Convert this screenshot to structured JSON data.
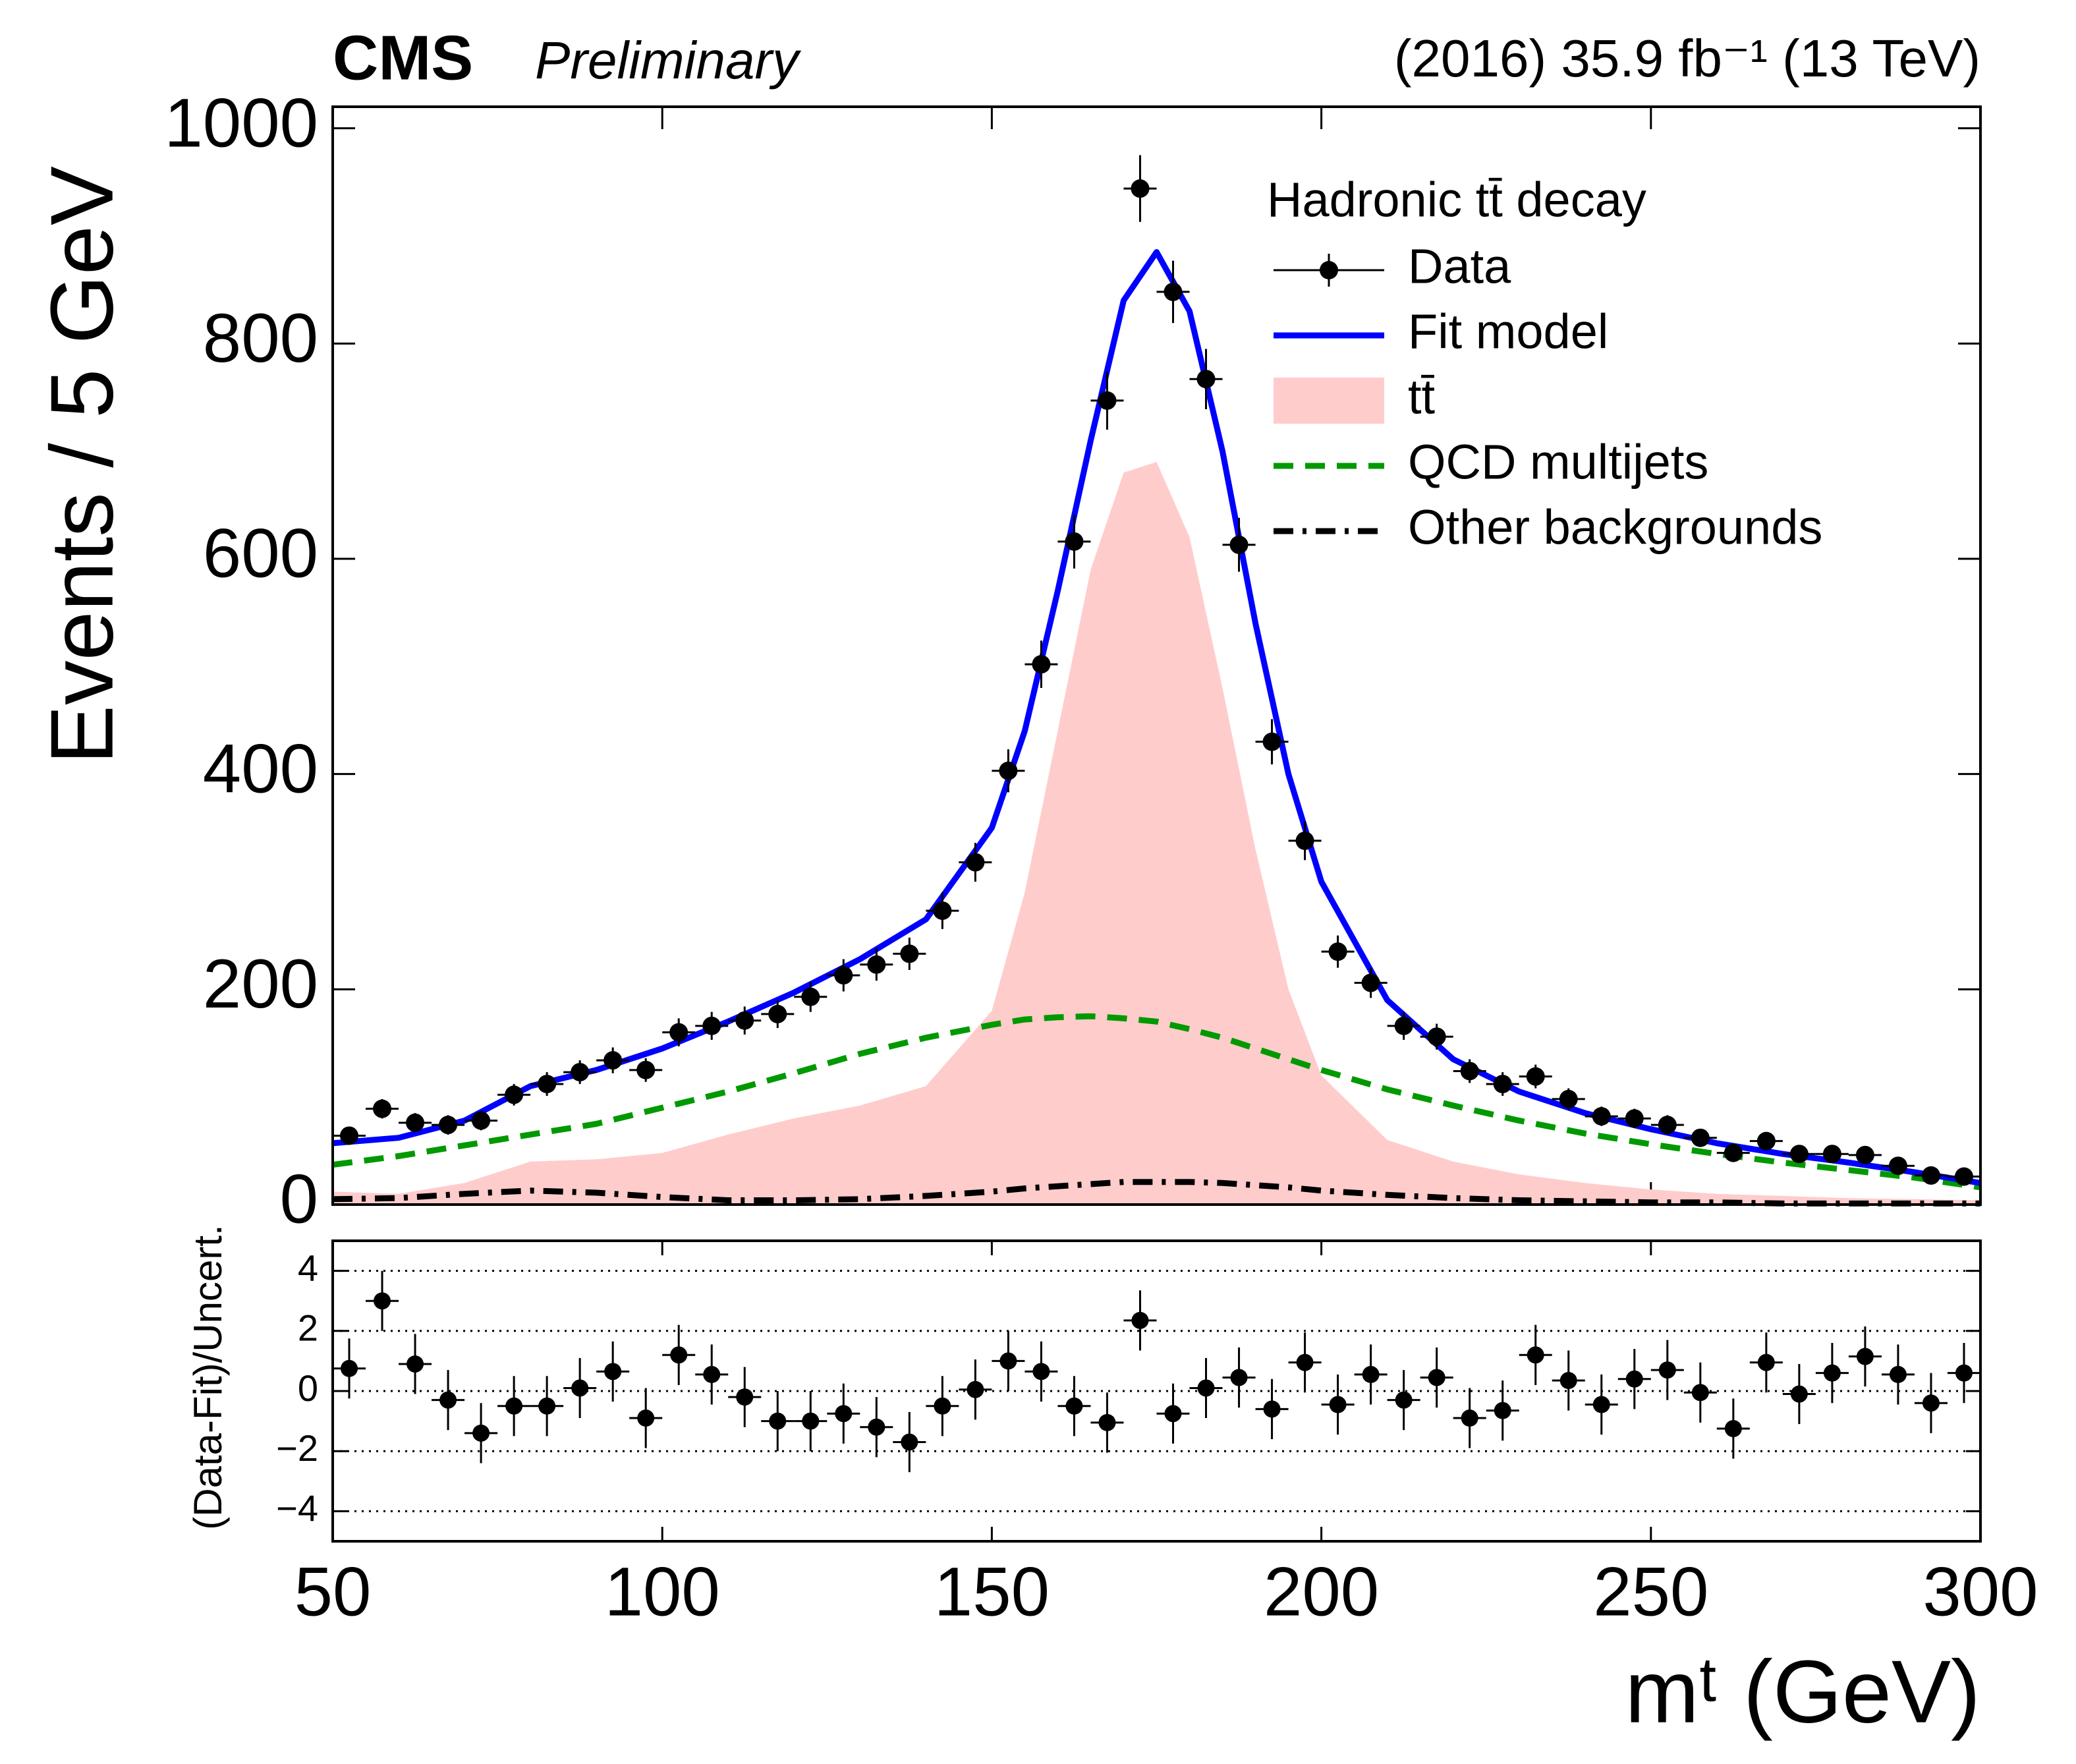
{
  "chart_data": [
    {
      "type": "fit",
      "title": "CMS",
      "subtitle": "Preliminary",
      "annotation": "(2016) 35.9 fb⁻¹ (13 TeV)",
      "ylabel": "Events / 5 GeV",
      "legend_title": "Hadronic tt̄ decay",
      "legend": "upper right",
      "xlim": [
        50,
        300
      ],
      "xticks": [
        50,
        100,
        150,
        200,
        250,
        300
      ],
      "ylim": [
        0,
        1020
      ],
      "yticks": [
        0,
        200,
        400,
        600,
        800,
        1000
      ],
      "x": [
        52.5,
        57.5,
        62.5,
        67.5,
        72.5,
        77.5,
        82.5,
        87.5,
        92.5,
        97.5,
        102.5,
        107.5,
        112.5,
        117.5,
        122.5,
        127.5,
        132.5,
        137.5,
        142.5,
        147.5,
        152.5,
        157.5,
        162.5,
        167.5,
        172.5,
        177.5,
        182.5,
        187.5,
        192.5,
        197.5,
        202.5,
        207.5,
        212.5,
        217.5,
        222.5,
        227.5,
        232.5,
        237.5,
        242.5,
        247.5,
        252.5,
        257.5,
        262.5,
        267.5,
        272.5,
        277.5,
        282.5,
        287.5,
        292.5,
        297.5
      ],
      "series": [
        {
          "name": "Data",
          "style": "points",
          "color": "#000000",
          "values": [
            64,
            89,
            76,
            74,
            78,
            102,
            112,
            123,
            134,
            125,
            160,
            166,
            171,
            177,
            193,
            213,
            223,
            233,
            273,
            318,
            403,
            502,
            616,
            747,
            944,
            848,
            767,
            613,
            430,
            338,
            235,
            206,
            166,
            156,
            124,
            112,
            119,
            98,
            82,
            80,
            74,
            62,
            48,
            59,
            47,
            47,
            46,
            36,
            27,
            26
          ],
          "errors": [
            8,
            9,
            9,
            9,
            9,
            10,
            11,
            11,
            12,
            11,
            13,
            13,
            13,
            13,
            14,
            15,
            15,
            15,
            17,
            18,
            20,
            22,
            25,
            27,
            31,
            29,
            28,
            25,
            21,
            18,
            15,
            14,
            13,
            12,
            11,
            11,
            11,
            10,
            9,
            9,
            9,
            8,
            7,
            8,
            7,
            7,
            7,
            6,
            5,
            5
          ]
        },
        {
          "name": "Fit model",
          "style": "line",
          "color": "#0000ff",
          "x": [
            50,
            60,
            70,
            80,
            90,
            100,
            110,
            120,
            130,
            140,
            150,
            155,
            160,
            165,
            170,
            175,
            180,
            185,
            190,
            195,
            200,
            210,
            220,
            230,
            240,
            250,
            260,
            270,
            280,
            290,
            300
          ],
          "values": [
            57,
            62,
            78,
            110,
            125,
            145,
            170,
            197,
            228,
            265,
            350,
            440,
            570,
            710,
            840,
            885,
            830,
            700,
            540,
            400,
            300,
            190,
            135,
            105,
            85,
            70,
            57,
            47,
            39,
            30,
            20
          ]
        },
        {
          "name": "tt̄",
          "style": "fill",
          "color": "#ffcccc",
          "x": [
            50,
            60,
            70,
            80,
            90,
            100,
            110,
            120,
            130,
            140,
            150,
            155,
            160,
            165,
            170,
            175,
            180,
            185,
            190,
            195,
            200,
            210,
            220,
            230,
            240,
            250,
            260,
            270,
            280,
            290,
            300
          ],
          "values": [
            12,
            10,
            20,
            40,
            42,
            48,
            65,
            80,
            92,
            110,
            180,
            290,
            440,
            590,
            680,
            690,
            620,
            480,
            330,
            200,
            120,
            60,
            40,
            28,
            20,
            14,
            10,
            8,
            6,
            5,
            4
          ]
        },
        {
          "name": "QCD multijets",
          "style": "dashed",
          "color": "#009900",
          "x": [
            50,
            60,
            70,
            80,
            90,
            100,
            110,
            120,
            130,
            140,
            150,
            155,
            160,
            165,
            170,
            175,
            180,
            185,
            190,
            195,
            200,
            210,
            220,
            230,
            240,
            250,
            260,
            270,
            280,
            290,
            300
          ],
          "values": [
            37,
            45,
            55,
            65,
            75,
            90,
            105,
            122,
            140,
            155,
            167,
            172,
            174,
            175,
            173,
            170,
            163,
            155,
            145,
            135,
            125,
            107,
            92,
            78,
            66,
            56,
            47,
            39,
            32,
            25,
            16
          ]
        },
        {
          "name": "Other backgrounds",
          "style": "dashdot",
          "color": "#000000",
          "x": [
            50,
            60,
            70,
            80,
            90,
            100,
            110,
            120,
            130,
            140,
            150,
            155,
            160,
            165,
            170,
            175,
            180,
            185,
            190,
            195,
            200,
            210,
            220,
            230,
            240,
            250,
            260,
            270,
            280,
            290,
            300
          ],
          "values": [
            5,
            6,
            10,
            13,
            11,
            7,
            4,
            4,
            5,
            8,
            12,
            15,
            17,
            19,
            21,
            21,
            21,
            20,
            18,
            16,
            13,
            9,
            6,
            4,
            3,
            2,
            2,
            1,
            1,
            1,
            1
          ]
        }
      ]
    },
    {
      "type": "pull",
      "xlabel": "mᵗ (GeV)",
      "ylabel": "(Data-Fit)/Uncert.",
      "xlim": [
        50,
        300
      ],
      "xticks": [
        50,
        100,
        150,
        200,
        250,
        300
      ],
      "ylim": [
        -5,
        5
      ],
      "yticks": [
        {
          "value": -4,
          "label": "−4"
        },
        {
          "value": -2,
          "label": "−2"
        },
        0,
        2,
        4
      ],
      "grid": true,
      "x": [
        52.5,
        57.5,
        62.5,
        67.5,
        72.5,
        77.5,
        82.5,
        87.5,
        92.5,
        97.5,
        102.5,
        107.5,
        112.5,
        117.5,
        122.5,
        127.5,
        132.5,
        137.5,
        142.5,
        147.5,
        152.5,
        157.5,
        162.5,
        167.5,
        172.5,
        177.5,
        182.5,
        187.5,
        192.5,
        197.5,
        202.5,
        207.5,
        212.5,
        217.5,
        222.5,
        227.5,
        232.5,
        237.5,
        242.5,
        247.5,
        252.5,
        257.5,
        262.5,
        267.5,
        272.5,
        277.5,
        282.5,
        287.5,
        292.5,
        297.5
      ],
      "color": "#000000",
      "values": [
        0.75,
        3.0,
        0.9,
        -0.3,
        -1.4,
        -0.5,
        -0.5,
        0.1,
        0.65,
        -0.9,
        1.2,
        0.55,
        -0.2,
        -1.0,
        -1.0,
        -0.75,
        -1.2,
        -1.7,
        -0.5,
        0.05,
        1.0,
        0.65,
        -0.5,
        -1.05,
        2.35,
        -0.75,
        0.1,
        0.45,
        -0.6,
        0.95,
        -0.45,
        0.55,
        -0.3,
        0.45,
        -0.9,
        -0.65,
        1.2,
        0.35,
        -0.45,
        0.4,
        0.7,
        -0.05,
        -1.25,
        0.95,
        -0.1,
        0.6,
        1.15,
        0.55,
        -0.4,
        0.6
      ],
      "errors": [
        1,
        1,
        1,
        1,
        1,
        1,
        1,
        1,
        1,
        1,
        1,
        1,
        1,
        1,
        1,
        1,
        1,
        1,
        1,
        1,
        1,
        1,
        1,
        1,
        1,
        1,
        1,
        1,
        1,
        1,
        1,
        1,
        1,
        1,
        1,
        1,
        1,
        1,
        1,
        1,
        1,
        1,
        1,
        1,
        1,
        1,
        1,
        1,
        1,
        1
      ]
    }
  ]
}
